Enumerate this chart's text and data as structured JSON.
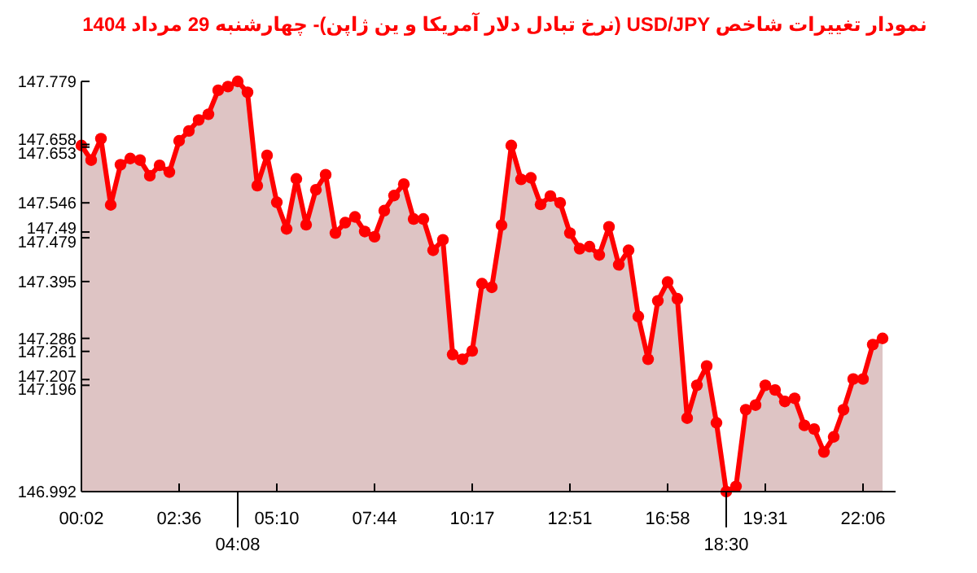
{
  "chart_data": {
    "type": "area",
    "title": "نمودار تغییرات شاخص USD/JPY (نرخ تبادل دلار آمریکا و ین ژاپن)- چهارشنبه  29 مرداد 1404",
    "categories": [
      "00:02",
      null,
      null,
      null,
      null,
      null,
      null,
      null,
      null,
      null,
      "02:36",
      null,
      null,
      null,
      null,
      null,
      "04:08",
      null,
      null,
      null,
      "05:10",
      null,
      null,
      null,
      null,
      null,
      null,
      null,
      null,
      null,
      "07:44",
      null,
      null,
      null,
      null,
      null,
      null,
      null,
      null,
      null,
      "10:17",
      null,
      null,
      null,
      null,
      null,
      null,
      null,
      null,
      null,
      "12:51",
      null,
      null,
      null,
      null,
      null,
      null,
      null,
      null,
      null,
      "16:58",
      null,
      null,
      null,
      null,
      null,
      "18:30",
      null,
      null,
      null,
      "19:31",
      null,
      null,
      null,
      null,
      null,
      null,
      null,
      null,
      null,
      "22:06",
      null,
      null
    ],
    "series": [
      {
        "color": "#ff0000",
        "values": [
          147.656,
          147.628,
          147.669,
          147.542,
          147.619,
          147.631,
          147.628,
          147.598,
          147.618,
          147.605,
          147.665,
          147.684,
          147.705,
          147.716,
          147.762,
          147.769,
          147.779,
          147.758,
          147.579,
          147.637,
          147.547,
          147.496,
          147.592,
          147.504,
          147.571,
          147.6,
          147.488,
          147.508,
          147.519,
          147.491,
          147.481,
          147.531,
          147.56,
          147.582,
          147.515,
          147.515,
          147.455,
          147.475,
          147.255,
          147.246,
          147.262,
          147.391,
          147.384,
          147.503,
          147.656,
          147.591,
          147.594,
          147.543,
          147.559,
          147.546,
          147.488,
          147.458,
          147.462,
          147.446,
          147.5,
          147.427,
          147.455,
          147.328,
          147.246,
          147.358,
          147.394,
          147.362,
          147.133,
          147.196,
          147.233,
          147.124,
          146.992,
          147.002,
          147.149,
          147.158,
          147.196,
          147.187,
          147.165,
          147.171,
          147.119,
          147.112,
          147.068,
          147.097,
          147.149,
          147.208,
          147.208,
          147.274,
          147.286
        ]
      }
    ],
    "ylim": [
      146.992,
      147.779
    ],
    "yticks": [
      147.779,
      147.658,
      147.653,
      147.546,
      147.49,
      147.479,
      147.395,
      147.286,
      147.261,
      147.207,
      147.196,
      146.992
    ],
    "marker": "circle"
  }
}
